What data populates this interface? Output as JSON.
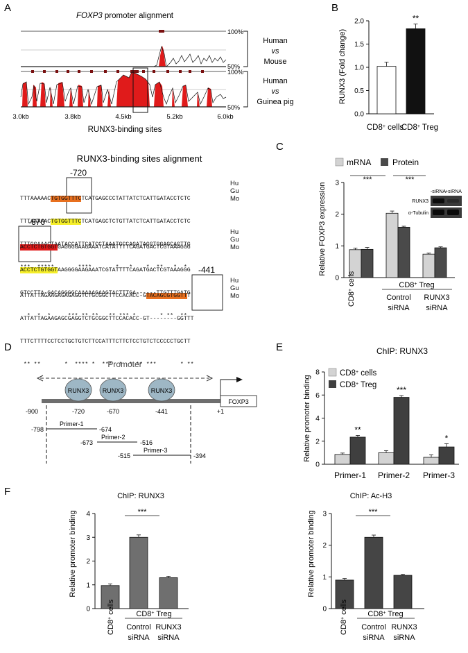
{
  "panels": {
    "A": {
      "label": "A",
      "title": "FOXP3 promoter alignment",
      "title_italic_part": "FOXP3",
      "title_rest": " promoter alignment",
      "pct_100": "100%",
      "pct_50": "50%",
      "comparisons": [
        {
          "line1": "Human",
          "line2": "vs",
          "line3": "Mouse"
        },
        {
          "line1": "Human",
          "line2": "vs",
          "line3": "Guinea pig"
        }
      ],
      "xticks": [
        "3.0kb",
        "3.8kb",
        "4.5kb",
        "5.2kb",
        "6.0kb"
      ],
      "xlabel": "RUNX3-binding sites",
      "alignment_title": "RUNX3-binding sites alignment",
      "site_labels": [
        "-720",
        "-670",
        "-441"
      ],
      "blocks": [
        {
          "rows": [
            {
              "pre": "TTTAAAAAC",
              "hl": "TGTGGTTTC",
              "post": "TCATGAGCCCTATTATCTCATTGATACCTCTC",
              "species": "Hu"
            },
            {
              "pre": "TTTAAAAAC",
              "hl": "TGTGGTTTC",
              "post": "TCATGAGCTCTGTTATCTCATTGATACCTCTC",
              "species": "Gu"
            },
            {
              "pre": "TTTGGAAACTAATACCATTCATCCTAAATGCCAGATAGGTGGAGCAGTTG",
              "hl": "",
              "post": "",
              "species": "Mo"
            }
          ],
          "stars": "***  *****       ****       *   *    *  **   *  *"
        },
        {
          "rows": [
            {
              "pre": "",
              "hl": "ACCTCTGTGGT",
              "post": "GAGGGGAAGAAATCATATTTTCAGATGACTCGTAAAGGG",
              "species": "Hu"
            },
            {
              "pre": "",
              "hl": "ACCTCTGTGGT",
              "post": "AAGGGGAAGAAATCGTATTTTCAGATGACTCGTAAAGGG",
              "species": "Gu"
            },
            {
              "pre": "GTCCTTA-GACAGGGGCAAAAAGAAGTACTTTGA------TTGTTTGATG",
              "hl": "",
              "post": "",
              "species": "Mo"
            }
          ],
          "stars": "  *  *  *     *** ** **   ** *** *       * **  **"
        },
        {
          "rows": [
            {
              "pre": "ATTATTAGAAGAGAGAGGTCTGCGGCTTCCACACC-G",
              "hl": "TACAGCGTGGTT",
              "post": "T",
              "species": "Hu"
            },
            {
              "pre": "ATTATTAGAAGAGCGAGGTCTGCGGCTTCCACACC-GT--------GGTTT",
              "hl": "",
              "post": "",
              "species": "Gu"
            },
            {
              "pre": "TTTCTTTTCCTCCTGCTGTCTTCCATTTCTTCTCCTGTCTCCCCCTGCTT",
              "hl": "",
              "post": "",
              "species": "Mo"
            }
          ],
          "stars": " ** **       *  **** *  ***  *  * ** ***       * **"
        }
      ]
    },
    "B": {
      "label": "B",
      "ylabel": "RUNX3 (Fold change)",
      "significance": "**"
    },
    "C": {
      "label": "C",
      "ylabel": "Relative FOXP3 expression",
      "legend": [
        "mRNA",
        "Protein"
      ],
      "sig": [
        "***",
        "***"
      ],
      "group_label": "CD8+ Treg",
      "xcat_cd8": "CD8+ cells",
      "xcat_ctrl_1": "Control",
      "xcat_ctrl_2": "siRNA",
      "xcat_runx_1": "RUNX3",
      "xcat_runx_2": "siRNA",
      "blot_cols": [
        "-siRNA",
        "+siRNA"
      ],
      "blot_rows": [
        "RUNX3",
        "α-Tubulin"
      ]
    },
    "D": {
      "label": "D",
      "promoter_label": "Promoter",
      "runx_label": "RUNX3",
      "gene_label": "FOXP3",
      "positions": [
        "-900",
        "-720",
        "-670",
        "-441",
        "+1"
      ],
      "primers": [
        {
          "name": "Primer-1",
          "start": "-798",
          "end": "-674"
        },
        {
          "name": "Primer-2",
          "start": "-673",
          "end": "-516"
        },
        {
          "name": "Primer-3",
          "start": "-515",
          "end": "-394"
        }
      ]
    },
    "E": {
      "label": "E",
      "title": "ChIP: RUNX3",
      "ylabel": "Relative promoter binding",
      "legend": [
        "CD8+ cells",
        "CD8+ Treg"
      ],
      "sig": [
        "**",
        "***",
        "*"
      ]
    },
    "F": {
      "label": "F",
      "left_title": "ChIP: RUNX3",
      "right_title": "ChIP: Ac-H3",
      "ylabel": "Relative promoter binding",
      "sig": "***",
      "group_label": "CD8+ Treg",
      "xcat_cd8": "CD8+ cells",
      "xcat_ctrl_1": "Control",
      "xcat_ctrl_2": "siRNA",
      "xcat_runx_1": "RUNX3",
      "xcat_runx_2": "siRNA"
    }
  },
  "chart_data": [
    {
      "id": "B",
      "type": "bar",
      "categories": [
        "CD8+ cells",
        "CD8+ Treg"
      ],
      "values": [
        1.02,
        1.83
      ],
      "errors": [
        0.09,
        0.1
      ],
      "colors": [
        "#ffffff",
        "#111111"
      ],
      "ylabel": "RUNX3 (Fold change)",
      "ylim": [
        0,
        2.0
      ],
      "yticks": [
        "0.0",
        "0.5",
        "1.0",
        "1.5",
        "2.0"
      ],
      "annotations": [
        "**"
      ]
    },
    {
      "id": "C",
      "type": "bar",
      "categories": [
        "CD8+ cells",
        "Control siRNA",
        "RUNX3 siRNA"
      ],
      "series": [
        {
          "name": "mRNA",
          "color": "#d3d3d3",
          "values": [
            0.88,
            2.03,
            0.74
          ],
          "errors": [
            0.05,
            0.07,
            0.03
          ]
        },
        {
          "name": "Protein",
          "color": "#4a4a4a",
          "values": [
            0.89,
            1.59,
            0.94
          ],
          "errors": [
            0.06,
            0.03,
            0.03
          ]
        }
      ],
      "ylabel": "Relative FOXP3 expression",
      "ylim": [
        0,
        3
      ],
      "yticks": [
        "0",
        "1",
        "2",
        "3"
      ]
    },
    {
      "id": "E",
      "type": "bar",
      "title": "ChIP: RUNX3",
      "categories": [
        "Primer-1",
        "Primer-2",
        "Primer-3"
      ],
      "series": [
        {
          "name": "CD8+ cells",
          "color": "#d3d3d3",
          "values": [
            0.85,
            1.0,
            0.6
          ],
          "errors": [
            0.12,
            0.18,
            0.22
          ]
        },
        {
          "name": "CD8+ Treg",
          "color": "#3f3f3f",
          "values": [
            2.35,
            5.8,
            1.5
          ],
          "errors": [
            0.15,
            0.15,
            0.28
          ]
        }
      ],
      "ylabel": "Relative promoter binding",
      "ylim": [
        0,
        8
      ],
      "yticks": [
        "0",
        "2",
        "4",
        "6",
        "8"
      ]
    },
    {
      "id": "F-left",
      "type": "bar",
      "title": "ChIP: RUNX3",
      "categories": [
        "CD8+ cells",
        "Control siRNA",
        "RUNX3 siRNA"
      ],
      "values": [
        0.97,
        3.0,
        1.3
      ],
      "errors": [
        0.07,
        0.1,
        0.06
      ],
      "color": "#6f6f6f",
      "ylabel": "Relative promoter binding",
      "ylim": [
        0,
        4
      ],
      "yticks": [
        "0",
        "1",
        "2",
        "3",
        "4"
      ]
    },
    {
      "id": "F-right",
      "type": "bar",
      "title": "ChIP: Ac-H3",
      "categories": [
        "CD8+ cells",
        "Control siRNA",
        "RUNX3 siRNA"
      ],
      "values": [
        0.9,
        2.25,
        1.05
      ],
      "errors": [
        0.05,
        0.07,
        0.03
      ],
      "color": "#454545",
      "ylabel": "Relative promoter binding",
      "ylim": [
        0,
        3
      ],
      "yticks": [
        "0",
        "1",
        "2",
        "3"
      ]
    }
  ]
}
